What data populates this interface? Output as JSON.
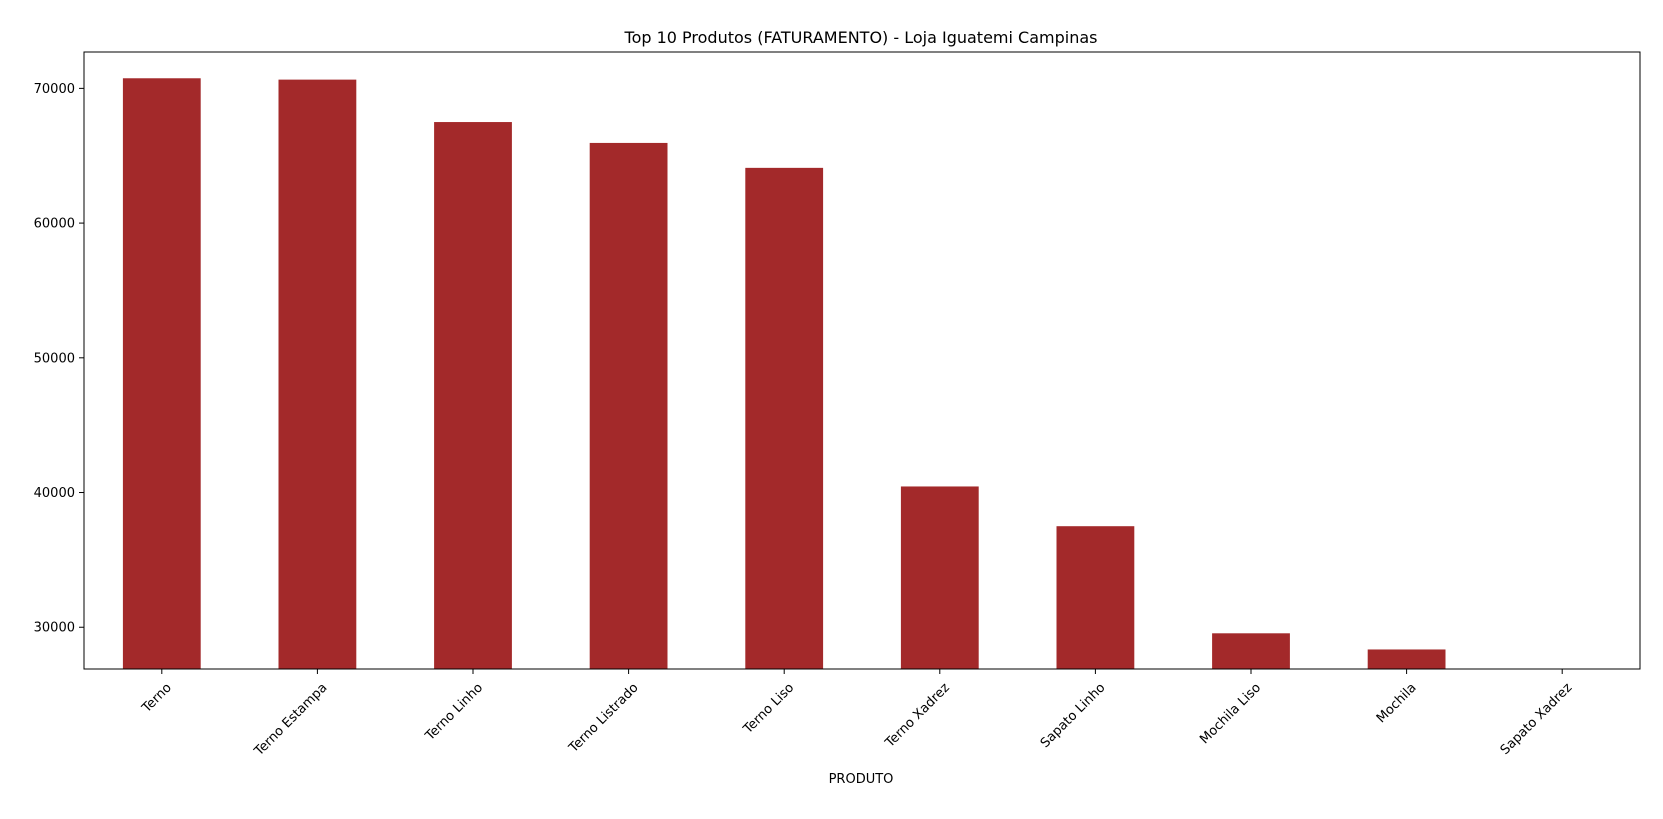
{
  "chart_data": {
    "type": "bar",
    "title": "Top 10 Produtos (FATURAMENTO) - Loja Iguatemi Campinas",
    "xlabel": "PRODUTO",
    "ylabel": "",
    "categories": [
      "Terno",
      "Terno Estampa",
      "Terno Linho",
      "Terno Listrado",
      "Terno Liso",
      "Terno Xadrez",
      "Sapato Linho",
      "Mochila Liso",
      "Mochila",
      "Sapato Xadrez"
    ],
    "values": [
      70750,
      70650,
      67500,
      65950,
      64100,
      40450,
      37500,
      29550,
      28350,
      26800
    ],
    "yticks": [
      30000,
      40000,
      50000,
      60000,
      70000
    ],
    "ylim": [
      26900,
      72700
    ],
    "bar_color": "#a3292a",
    "grid": false,
    "legend": "none"
  }
}
